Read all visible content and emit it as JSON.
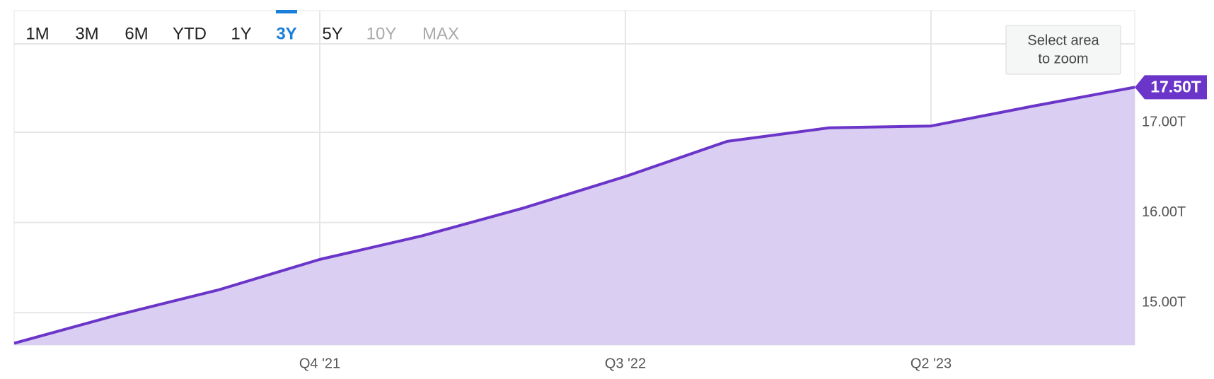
{
  "chart_data": {
    "type": "area",
    "range_selector": {
      "options": [
        "1M",
        "3M",
        "6M",
        "YTD",
        "1Y",
        "3Y",
        "5Y",
        "10Y",
        "MAX"
      ],
      "active": 5,
      "disabled": [
        7,
        8
      ]
    },
    "zoom_hint": [
      "Select area",
      "to zoom"
    ],
    "categories": [
      null,
      null,
      null,
      "Q4 '21",
      null,
      null,
      "Q3 '22",
      null,
      null,
      "Q2 '23",
      null,
      null
    ],
    "values": [
      14.66,
      14.97,
      15.25,
      15.59,
      15.85,
      16.16,
      16.51,
      16.9,
      17.05,
      17.07,
      17.29,
      17.5
    ],
    "value_labels": [
      null,
      null,
      null,
      null,
      null,
      null,
      null,
      null,
      null,
      null,
      null,
      "17.50T"
    ],
    "color": "#6a35c8",
    "fill": "#d8ccf2",
    "ylim": [
      14.64,
      18.35
    ],
    "yticks": [
      {
        "value": 15,
        "label": "15.00T"
      },
      {
        "value": 16,
        "label": "16.00T"
      },
      {
        "value": 17,
        "label": "17.00T"
      }
    ],
    "grid": true
  }
}
